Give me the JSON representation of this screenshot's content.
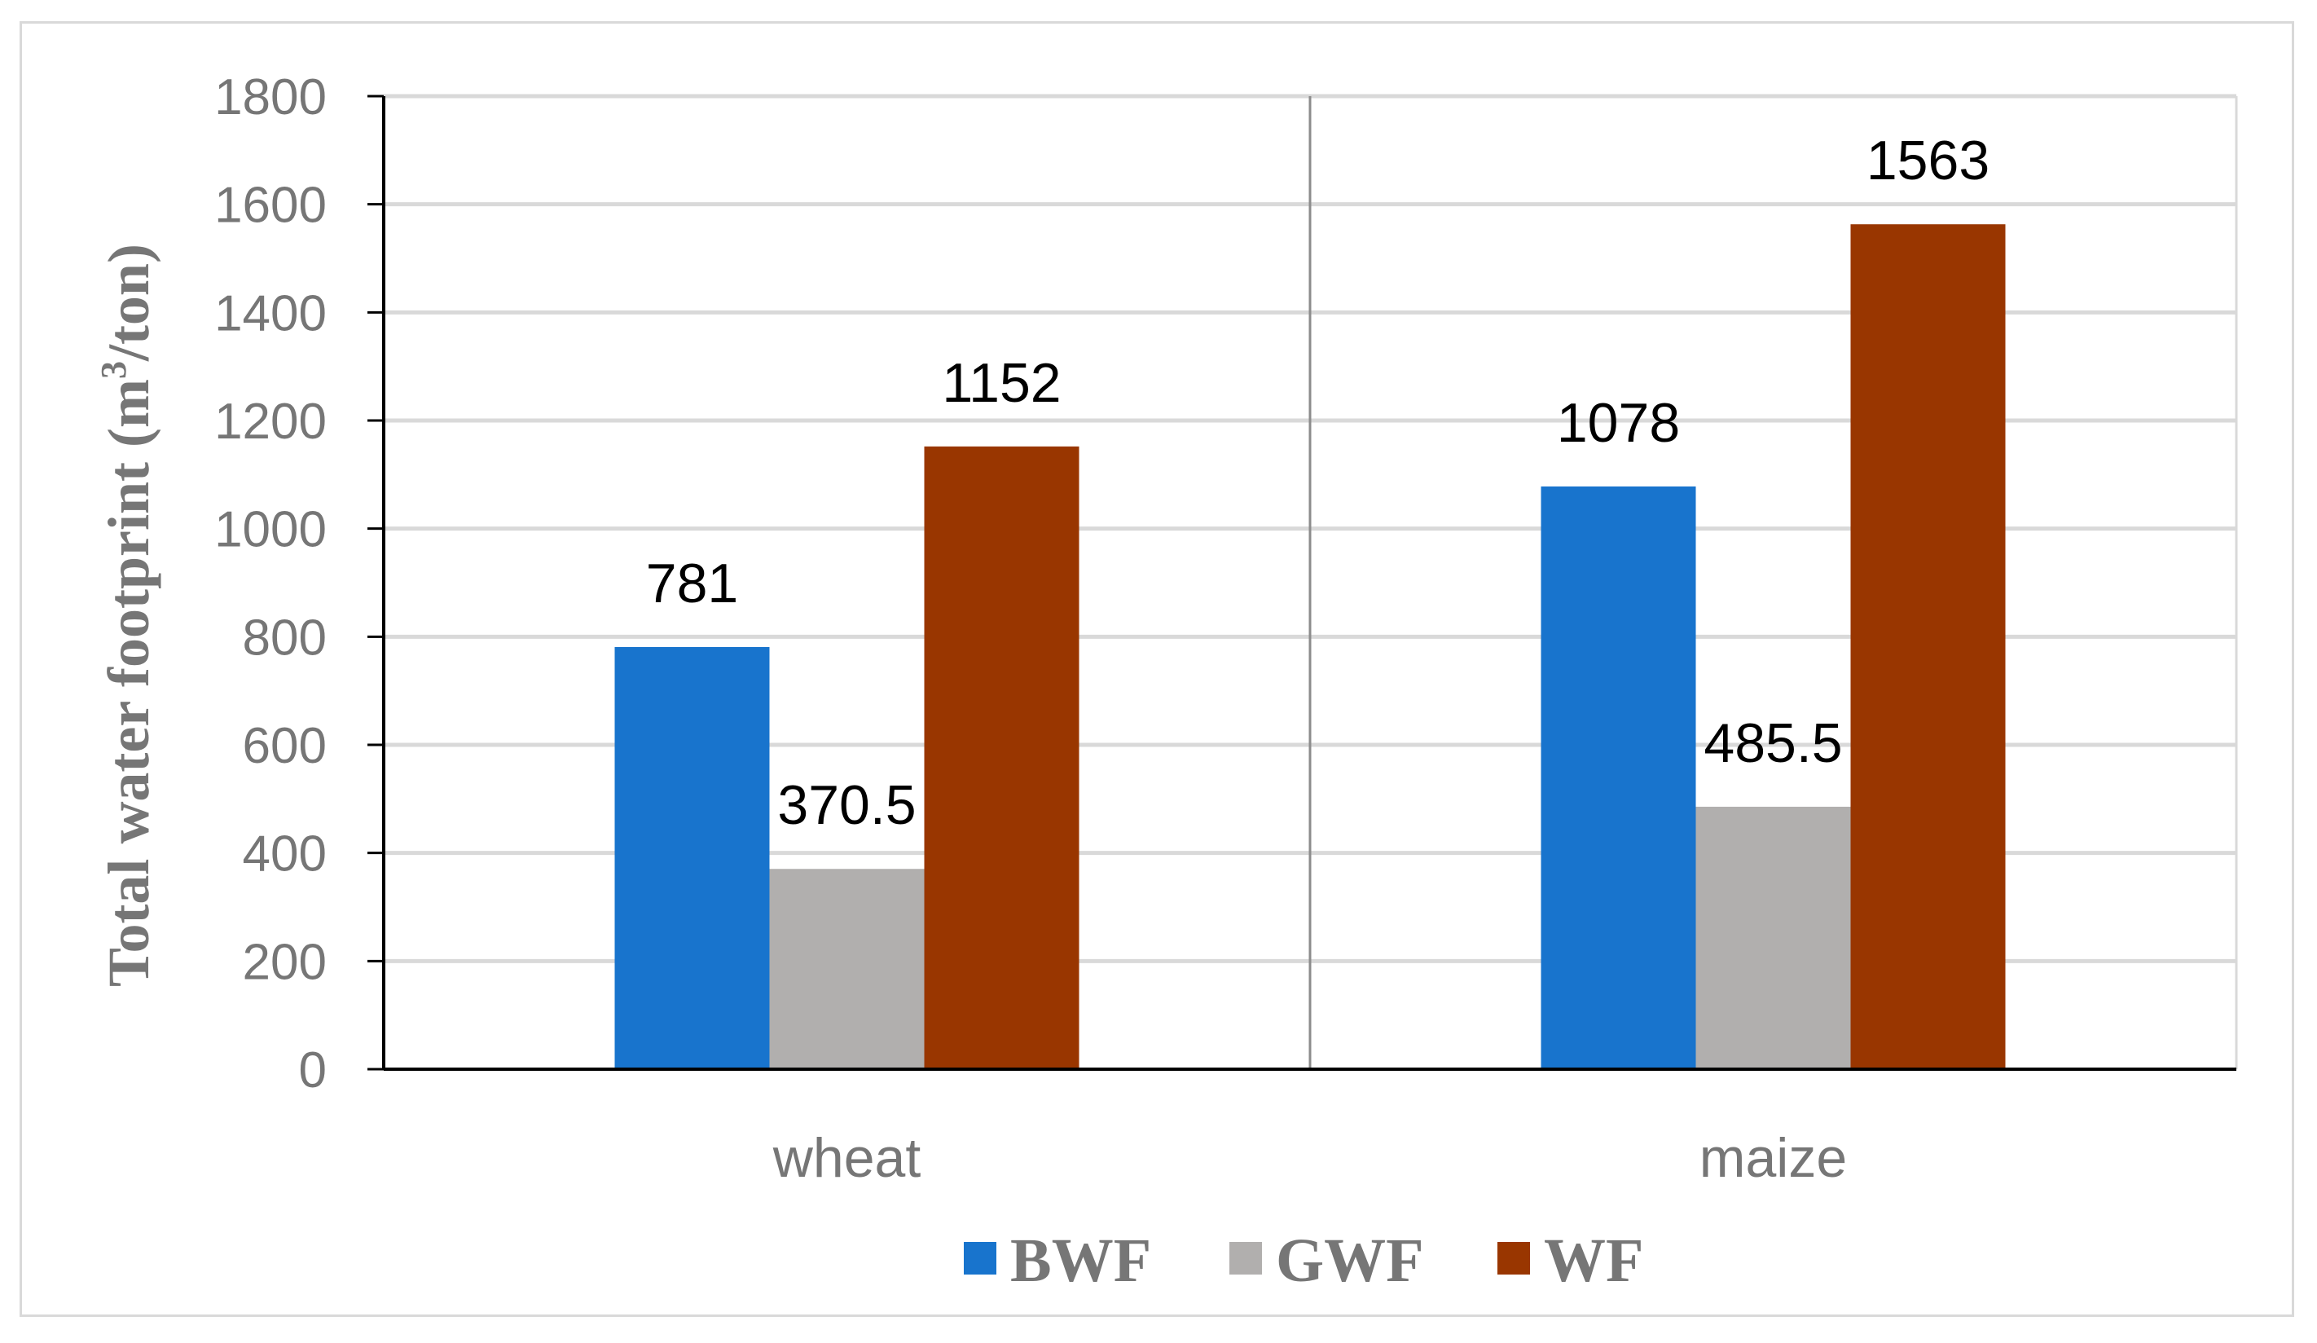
{
  "chart_data": {
    "type": "bar",
    "categories": [
      "wheat",
      "maize"
    ],
    "series": [
      {
        "name": "BWF",
        "values": [
          781,
          1078
        ],
        "color": "#1874cd",
        "labels": [
          "781",
          "1078"
        ]
      },
      {
        "name": "GWF",
        "values": [
          370.5,
          485.5
        ],
        "color": "#b1afae",
        "labels": [
          "370.5",
          "485.5"
        ]
      },
      {
        "name": "WF",
        "values": [
          1152,
          1563
        ],
        "color": "#993600",
        "labels": [
          "1152",
          "1563"
        ]
      }
    ],
    "ylabel_main": "Total water footprint (m",
    "ylabel_sup": "3",
    "ylabel_tail": "/ton)",
    "ylim": [
      0,
      1800
    ],
    "yticks": [
      "0",
      "200",
      "400",
      "600",
      "800",
      "1000",
      "1200",
      "1400",
      "1600",
      "1800"
    ],
    "grid": true,
    "legend_position": "bottom"
  }
}
